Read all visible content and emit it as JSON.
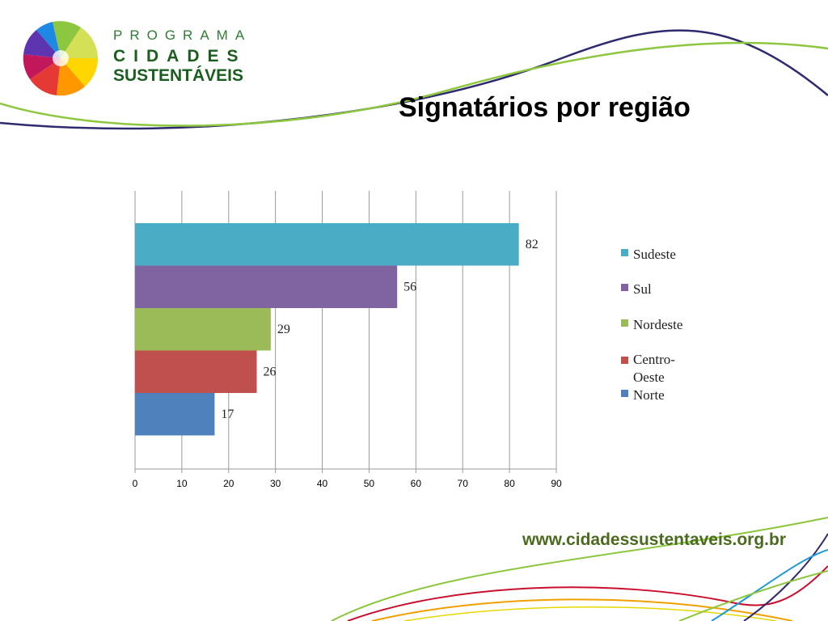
{
  "logo": {
    "line1": "PROGRAMA",
    "line2": "CIDADES",
    "line3": "SUSTENTÁVEIS",
    "icon": "colorful-flower-icon"
  },
  "slide": {
    "title": "Signatários por região",
    "url": "www.cidadessustentaveis.org.br"
  },
  "colors": {
    "Sudeste": "#4bacc6",
    "Sul": "#8064a2",
    "Nordeste": "#9bbb59",
    "Centro-Oeste": "#c0504d",
    "Norte": "#4f81bd",
    "brand_green": "#8dc63f",
    "brand_navy": "#2e2a6e"
  },
  "chart_data": {
    "type": "bar",
    "orientation": "horizontal",
    "title": "",
    "xlabel": "",
    "ylabel": "",
    "xlim": [
      0,
      90
    ],
    "xticks": [
      0,
      10,
      20,
      30,
      40,
      50,
      60,
      70,
      80,
      90
    ],
    "grid": true,
    "legend_position": "right",
    "series": [
      {
        "name": "Sudeste",
        "values": [
          82
        ]
      },
      {
        "name": "Sul",
        "values": [
          56
        ]
      },
      {
        "name": "Nordeste",
        "values": [
          29
        ]
      },
      {
        "name": "Centro-Oeste",
        "values": [
          26
        ]
      },
      {
        "name": "Norte",
        "values": [
          17
        ]
      }
    ],
    "legend": [
      "Sudeste",
      "Sul",
      "Nordeste",
      "Centro-Oeste",
      "Norte"
    ]
  }
}
